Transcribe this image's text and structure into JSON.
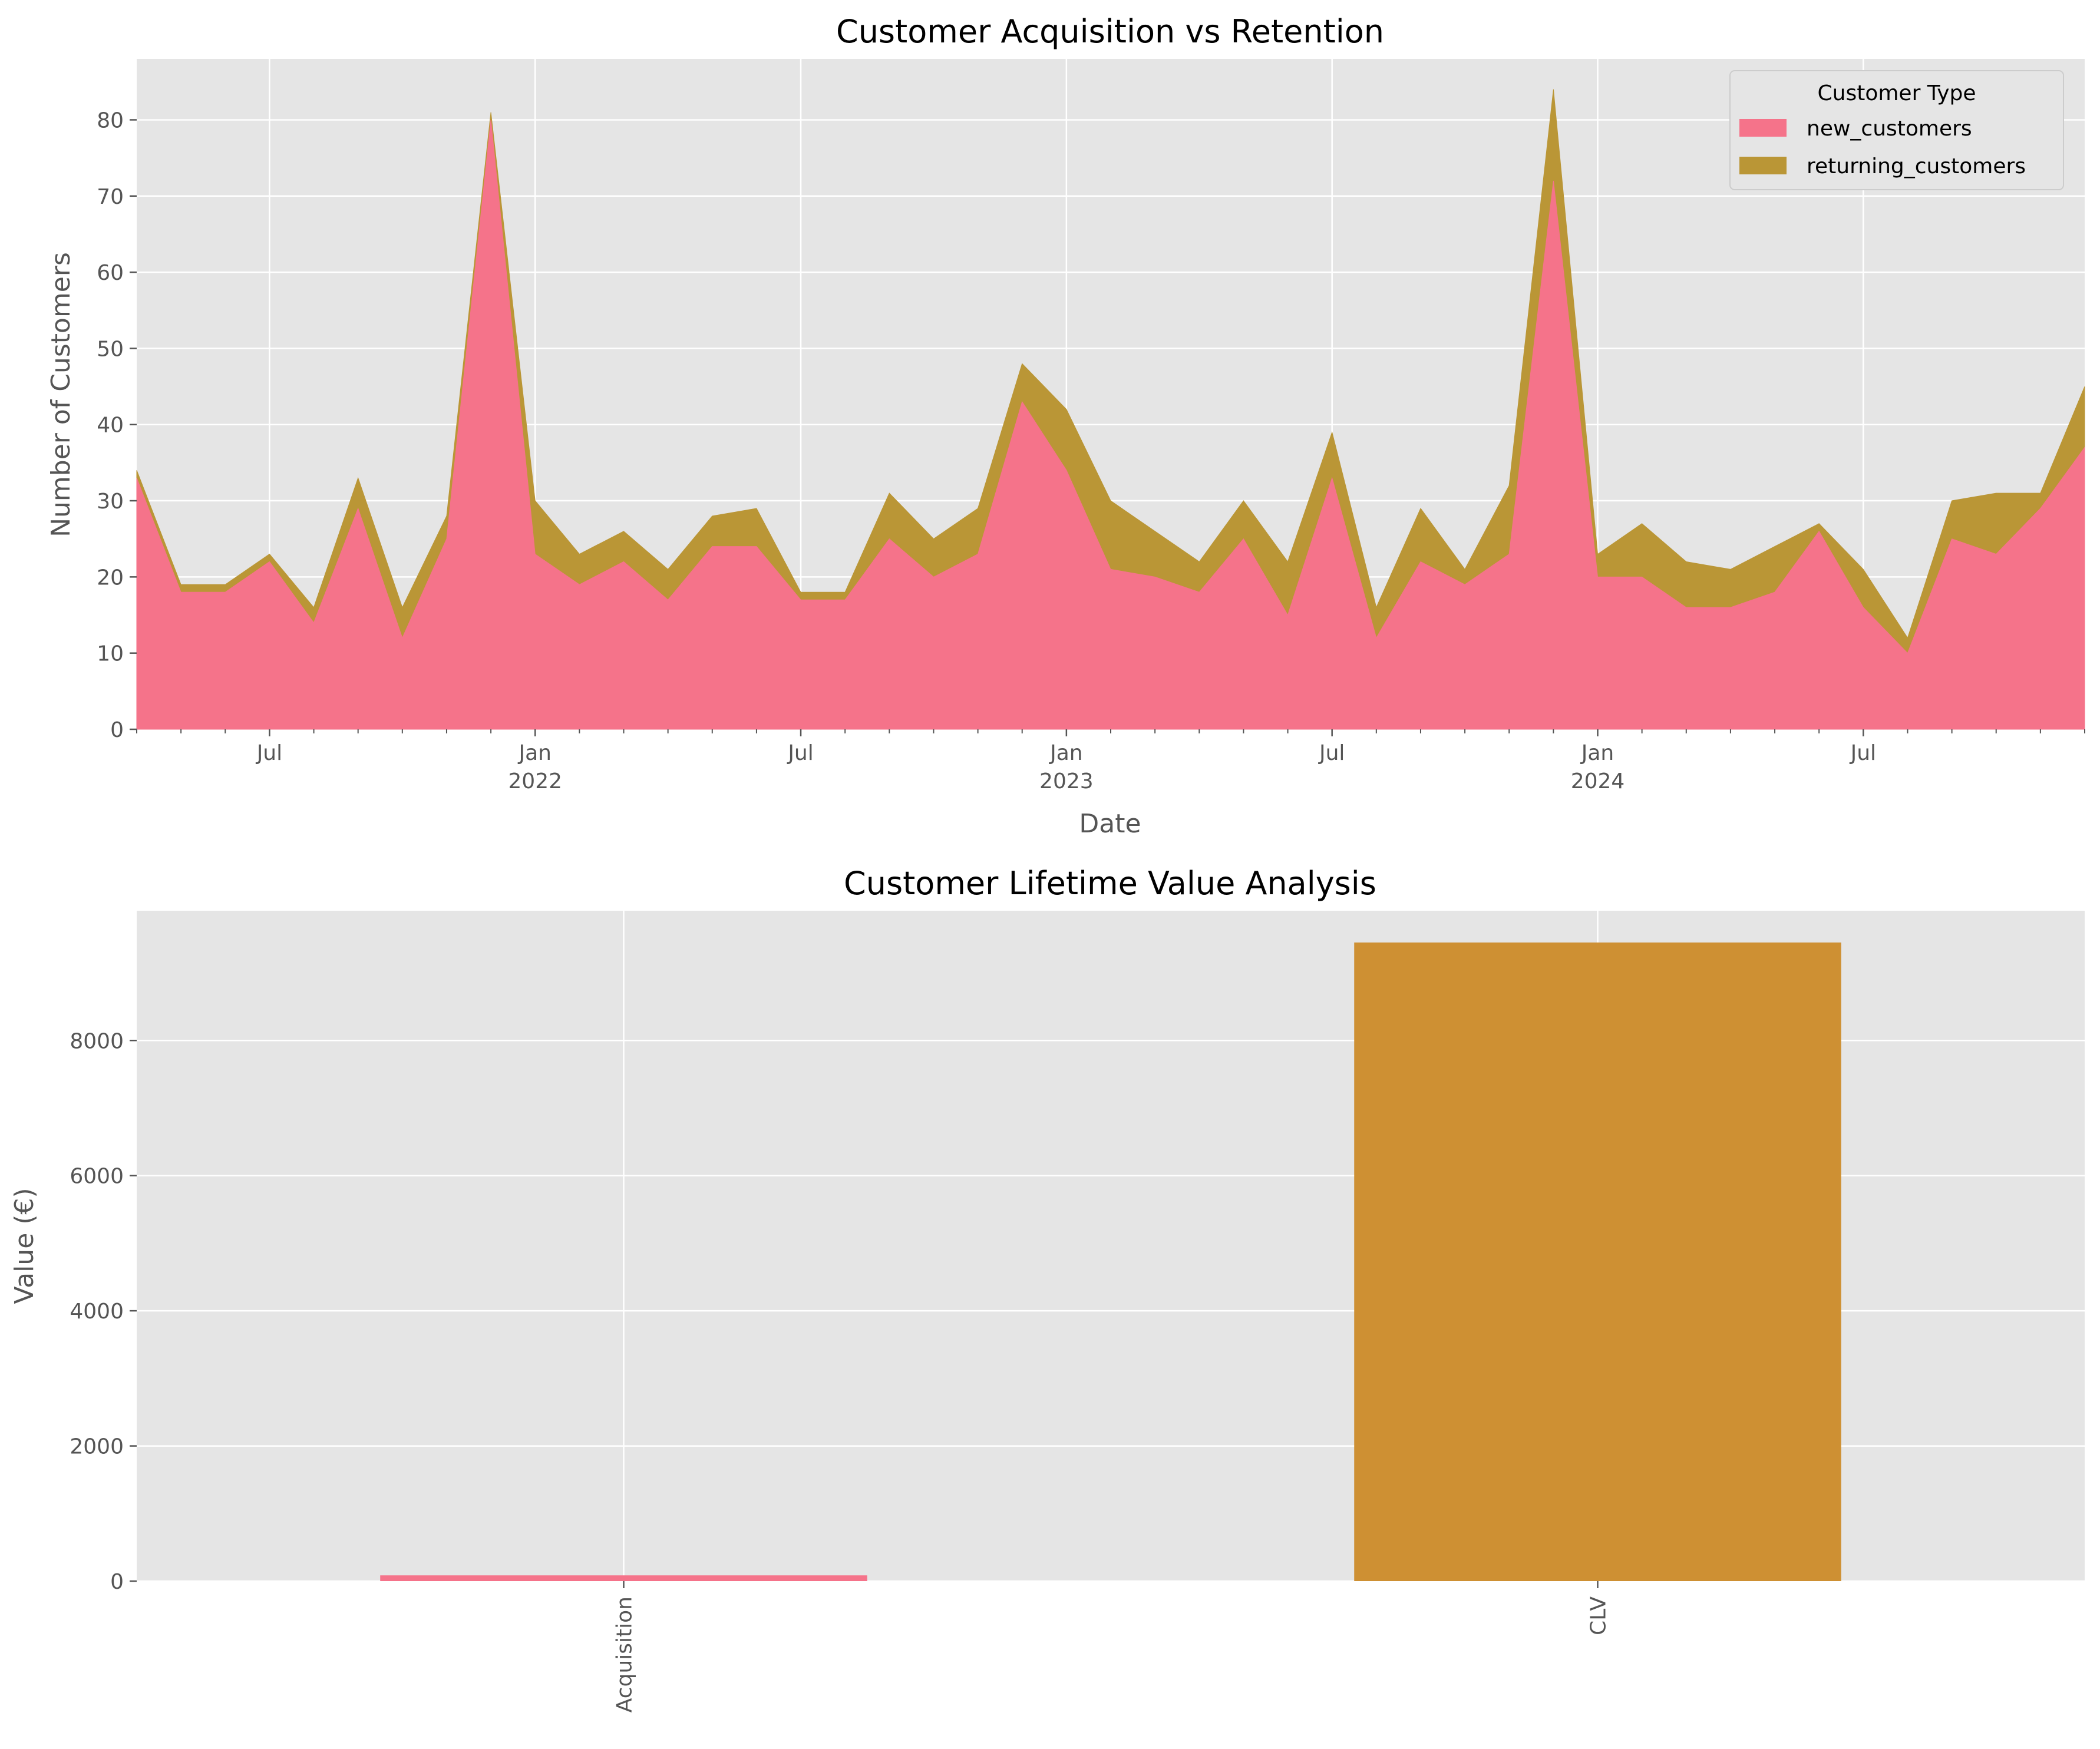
{
  "colors": {
    "panel_bg": "#E5E5E5",
    "grid": "#FFFFFF",
    "new_customers": "#F5738A",
    "returning_customers": "#BA9636",
    "acquisition_bar": "#F5738A",
    "clv_bar": "#CE9033"
  },
  "chart_data": [
    {
      "type": "area",
      "stacked": true,
      "title": "Customer Acquisition vs Retention",
      "xlabel": "Date",
      "ylabel": "Number of Customers",
      "ylim": [
        0,
        88
      ],
      "yticks": [
        0,
        10,
        20,
        30,
        40,
        50,
        60,
        70,
        80
      ],
      "grid": true,
      "legend": {
        "title": "Customer Type",
        "placement": "top-right"
      },
      "x": [
        "2021-04",
        "2021-05",
        "2021-06",
        "2021-07",
        "2021-08",
        "2021-09",
        "2021-10",
        "2021-11",
        "2021-12",
        "2022-01",
        "2022-02",
        "2022-03",
        "2022-04",
        "2022-05",
        "2022-06",
        "2022-07",
        "2022-08",
        "2022-09",
        "2022-10",
        "2022-11",
        "2022-12",
        "2023-01",
        "2023-02",
        "2023-03",
        "2023-04",
        "2023-05",
        "2023-06",
        "2023-07",
        "2023-08",
        "2023-09",
        "2023-10",
        "2023-11",
        "2023-12",
        "2024-01",
        "2024-02",
        "2024-03",
        "2024-04",
        "2024-05",
        "2024-06",
        "2024-07",
        "2024-08",
        "2024-09",
        "2024-10",
        "2024-11",
        "2024-12"
      ],
      "xlim": [
        "2021-04",
        "2024-12"
      ],
      "xticks": [
        {
          "x": "2021-07",
          "label": "Jul",
          "sub": ""
        },
        {
          "x": "2022-01",
          "label": "Jan",
          "sub": "2022"
        },
        {
          "x": "2022-07",
          "label": "Jul",
          "sub": ""
        },
        {
          "x": "2023-01",
          "label": "Jan",
          "sub": "2023"
        },
        {
          "x": "2023-07",
          "label": "Jul",
          "sub": ""
        },
        {
          "x": "2024-01",
          "label": "Jan",
          "sub": "2024"
        },
        {
          "x": "2024-07",
          "label": "Jul",
          "sub": ""
        }
      ],
      "series": [
        {
          "name": "new_customers",
          "values": [
            33,
            18,
            18,
            22,
            14,
            29,
            12,
            25,
            80,
            23,
            19,
            22,
            17,
            24,
            24,
            17,
            17,
            25,
            20,
            23,
            43,
            34,
            21,
            20,
            18,
            25,
            15,
            33,
            12,
            22,
            19,
            23,
            72,
            20,
            20,
            16,
            16,
            18,
            26,
            16,
            10,
            25,
            23,
            29,
            37
          ]
        },
        {
          "name": "returning_customers",
          "values": [
            1,
            1,
            1,
            1,
            2,
            4,
            4,
            3,
            1,
            7,
            4,
            4,
            4,
            4,
            5,
            1,
            1,
            6,
            5,
            6,
            5,
            8,
            9,
            6,
            4,
            5,
            7,
            6,
            4,
            7,
            2,
            9,
            12,
            3,
            7,
            6,
            5,
            6,
            1,
            5,
            2,
            5,
            8,
            2,
            8
          ]
        }
      ]
    },
    {
      "type": "bar",
      "title": "Customer Lifetime Value Analysis",
      "xlabel": "",
      "ylabel": "Value (€)",
      "ylim": [
        0,
        9920
      ],
      "yticks": [
        0,
        2000,
        4000,
        6000,
        8000
      ],
      "grid": true,
      "categories": [
        "Acquisition",
        "CLV"
      ],
      "values": [
        85,
        9450
      ]
    }
  ]
}
